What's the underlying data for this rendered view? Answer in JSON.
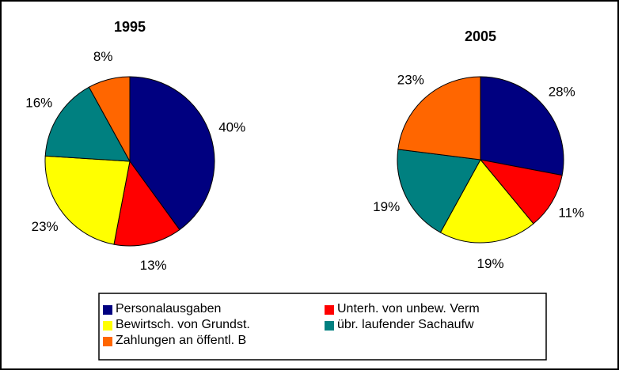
{
  "chart_data": [
    {
      "type": "pie",
      "title": "1995",
      "categories": [
        "Personalausgaben",
        "Unterh. von unbew. Verm",
        "Bewirtsch. von Grundst.",
        "übr. laufender Sachaufw",
        "Zahlungen an öffentl. B"
      ],
      "values": [
        40,
        13,
        23,
        16,
        8
      ],
      "value_labels": [
        "40%",
        "13%",
        "23%",
        "16%",
        "8%"
      ],
      "colors": [
        "#000080",
        "#ff0000",
        "#ffff00",
        "#008080",
        "#ff6600"
      ]
    },
    {
      "type": "pie",
      "title": "2005",
      "categories": [
        "Personalausgaben",
        "Unterh. von unbew. Verm",
        "Bewirtsch. von Grundst.",
        "übr. laufender Sachaufw",
        "Zahlungen an öffentl. B"
      ],
      "values": [
        28,
        11,
        19,
        19,
        23
      ],
      "value_labels": [
        "28%",
        "11%",
        "19%",
        "19%",
        "23%"
      ],
      "colors": [
        "#000080",
        "#ff0000",
        "#ffff00",
        "#008080",
        "#ff6600"
      ]
    }
  ]
}
